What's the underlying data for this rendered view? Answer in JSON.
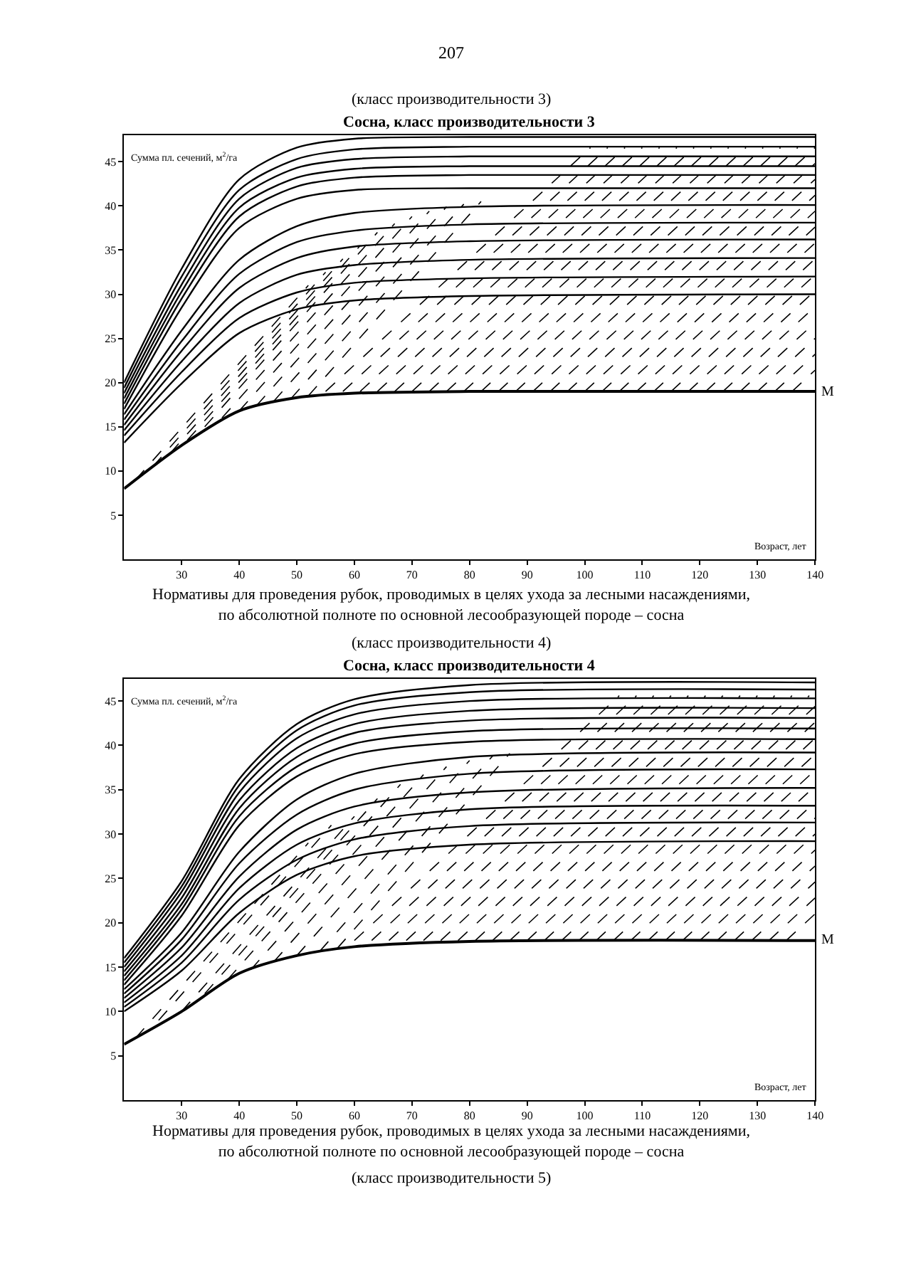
{
  "chart_data": [
    {
      "type": "line",
      "title": "Сосна, класс производительности 3",
      "xlabel": "Возраст, лет",
      "ylabel": "Сумма пл. сечений, м$^{2}$/га",
      "annotations": [
        "207",
        "(класс производительности 3)"
      ],
      "xlim": [
        20,
        140
      ],
      "xticks": [
        30,
        40,
        50,
        60,
        70,
        80,
        90,
        100,
        110,
        120,
        130,
        140
      ],
      "ylim": [
        0,
        48
      ],
      "yticks": [
        5,
        10,
        15,
        20,
        25,
        30,
        35,
        40,
        45
      ],
      "x": [
        20,
        30,
        40,
        50,
        60,
        80,
        140
      ],
      "series": [
        {
          "color": "#000000",
          "values": [
            20.0,
            32.9,
            43.0,
            46.6,
            47.6,
            47.8,
            47.8
          ]
        },
        {
          "color": "#000000",
          "values": [
            19.4,
            32.0,
            41.8,
            45.3,
            46.4,
            46.7,
            46.7
          ]
        },
        {
          "color": "#000000",
          "values": [
            18.8,
            31.1,
            40.8,
            44.3,
            45.3,
            45.6,
            45.6
          ]
        },
        {
          "color": "#000000",
          "values": [
            18.2,
            30.3,
            39.8,
            43.2,
            44.2,
            44.5,
            44.5
          ]
        },
        {
          "color": "#000000",
          "values": [
            17.6,
            29.5,
            38.8,
            42.2,
            43.2,
            43.5,
            43.5
          ]
        },
        {
          "color": "#000000",
          "values": [
            17.0,
            28.5,
            37.5,
            40.8,
            41.8,
            42.0,
            42.0
          ]
        },
        {
          "color": "#000000",
          "values": [
            16.4,
            25.9,
            33.9,
            37.7,
            39.2,
            39.9,
            40.1
          ]
        },
        {
          "color": "#000000",
          "values": [
            15.8,
            24.7,
            32.3,
            35.9,
            37.2,
            37.9,
            38.1
          ]
        },
        {
          "color": "#000000",
          "values": [
            15.2,
            23.6,
            30.7,
            34.1,
            35.4,
            36.0,
            36.2
          ]
        },
        {
          "color": "#000000",
          "values": [
            14.6,
            22.4,
            29.0,
            32.2,
            33.3,
            33.9,
            34.1
          ]
        },
        {
          "color": "#000000",
          "values": [
            14.0,
            21.2,
            27.3,
            30.2,
            31.3,
            31.8,
            32.0
          ]
        },
        {
          "color": "#000000",
          "values": [
            13.2,
            19.9,
            25.6,
            28.3,
            29.3,
            29.8,
            30.0
          ]
        },
        {
          "name": "М",
          "color": "#000000",
          "values": [
            8.0,
            12.9,
            16.8,
            18.3,
            18.8,
            19.0,
            19.0
          ]
        },
        {
          "line_style": "dashed",
          "color": "#000000",
          "x": [
            22,
            52
          ],
          "values": [
            9,
            31
          ]
        },
        {
          "line_style": "dashed",
          "color": "#000000",
          "x": [
            25,
            55
          ],
          "values": [
            10.5,
            32.5
          ]
        },
        {
          "line_style": "dashed",
          "color": "#000000",
          "x": [
            28,
            58
          ],
          "values": [
            12,
            34
          ]
        },
        {
          "line_style": "dashed",
          "color": "#000000",
          "x": [
            31,
            61
          ],
          "values": [
            13.5,
            35.5
          ]
        },
        {
          "line_style": "dashed",
          "color": "#000000",
          "x": [
            34,
            64
          ],
          "values": [
            15,
            37
          ]
        },
        {
          "line_style": "dashed",
          "color": "#000000",
          "x": [
            37,
            67
          ],
          "values": [
            16,
            38
          ]
        },
        {
          "line_style": "dashed",
          "color": "#000000",
          "x": [
            40,
            70
          ],
          "values": [
            16.8,
            38.8
          ]
        },
        {
          "line_style": "dashed",
          "color": "#000000",
          "x": [
            43,
            73
          ],
          "values": [
            17.4,
            39.4
          ]
        },
        {
          "line_style": "dashed",
          "color": "#000000",
          "x": [
            46,
            76
          ],
          "values": [
            17.9,
            39.9
          ]
        },
        {
          "line_style": "dashed",
          "color": "#000000",
          "x": [
            49,
            79
          ],
          "values": [
            18.2,
            40.2
          ]
        },
        {
          "line_style": "dashed",
          "color": "#000000",
          "x": [
            52,
            82
          ],
          "values": [
            18.5,
            40.5
          ]
        },
        {
          "line_style": "dashed",
          "color": "#000000",
          "x": [
            55,
            101
          ],
          "values": [
            19,
            46.6
          ]
        },
        {
          "line_style": "dashed",
          "color": "#000000",
          "x": [
            58,
            104
          ],
          "values": [
            19,
            46.6
          ]
        },
        {
          "line_style": "dashed",
          "color": "#000000",
          "x": [
            61,
            107
          ],
          "values": [
            19,
            46.6
          ]
        },
        {
          "line_style": "dashed",
          "color": "#000000",
          "x": [
            64,
            110
          ],
          "values": [
            19,
            46.6
          ]
        },
        {
          "line_style": "dashed",
          "color": "#000000",
          "x": [
            67,
            113
          ],
          "values": [
            19,
            46.6
          ]
        },
        {
          "line_style": "dashed",
          "color": "#000000",
          "x": [
            70,
            116
          ],
          "values": [
            19,
            46.6
          ]
        },
        {
          "line_style": "dashed",
          "color": "#000000",
          "x": [
            73,
            119
          ],
          "values": [
            19,
            46.6
          ]
        },
        {
          "line_style": "dashed",
          "color": "#000000",
          "x": [
            76,
            122
          ],
          "values": [
            19,
            46.6
          ]
        },
        {
          "line_style": "dashed",
          "color": "#000000",
          "x": [
            79,
            125
          ],
          "values": [
            19,
            46.6
          ]
        },
        {
          "line_style": "dashed",
          "color": "#000000",
          "x": [
            82,
            128
          ],
          "values": [
            19,
            46.6
          ]
        },
        {
          "line_style": "dashed",
          "color": "#000000",
          "x": [
            85,
            131
          ],
          "values": [
            19,
            46.6
          ]
        },
        {
          "line_style": "dashed",
          "color": "#000000",
          "x": [
            88,
            134
          ],
          "values": [
            19,
            46.6
          ]
        },
        {
          "line_style": "dashed",
          "color": "#000000",
          "x": [
            91,
            137
          ],
          "values": [
            19,
            46.6
          ]
        },
        {
          "line_style": "dashed",
          "color": "#000000",
          "x": [
            94,
            140
          ],
          "values": [
            19,
            46.6
          ]
        },
        {
          "line_style": "dashed",
          "color": "#000000",
          "x": [
            97,
            140
          ],
          "values": [
            19,
            44.8
          ]
        },
        {
          "line_style": "dashed",
          "color": "#000000",
          "x": [
            100,
            140
          ],
          "values": [
            19,
            43.0
          ]
        },
        {
          "line_style": "dashed",
          "color": "#000000",
          "x": [
            103,
            140
          ],
          "values": [
            19,
            41.2
          ]
        },
        {
          "line_style": "dashed",
          "color": "#000000",
          "x": [
            106,
            140
          ],
          "values": [
            19,
            39.4
          ]
        },
        {
          "line_style": "dashed",
          "color": "#000000",
          "x": [
            109,
            140
          ],
          "values": [
            19,
            37.6
          ]
        },
        {
          "line_style": "dashed",
          "color": "#000000",
          "x": [
            112,
            140
          ],
          "values": [
            19,
            35.8
          ]
        },
        {
          "line_style": "dashed",
          "color": "#000000",
          "x": [
            115,
            140
          ],
          "values": [
            19,
            34.0
          ]
        },
        {
          "line_style": "dashed",
          "color": "#000000",
          "x": [
            118,
            140
          ],
          "values": [
            19,
            32.2
          ]
        },
        {
          "line_style": "dashed",
          "color": "#000000",
          "x": [
            121,
            140
          ],
          "values": [
            19,
            30.4
          ]
        },
        {
          "line_style": "dashed",
          "color": "#000000",
          "x": [
            124,
            140
          ],
          "values": [
            19,
            28.6
          ]
        },
        {
          "line_style": "dashed",
          "color": "#000000",
          "x": [
            127,
            140
          ],
          "values": [
            19,
            26.8
          ]
        },
        {
          "line_style": "dashed",
          "color": "#000000",
          "x": [
            130,
            140
          ],
          "values": [
            19,
            25.0
          ]
        },
        {
          "line_style": "dashed",
          "color": "#000000",
          "x": [
            133,
            140
          ],
          "values": [
            19,
            23.2
          ]
        },
        {
          "line_style": "dashed",
          "color": "#000000",
          "x": [
            136,
            140
          ],
          "values": [
            19,
            21.4
          ]
        }
      ]
    },
    {
      "type": "line",
      "title": "Сосна, класс производительности 4",
      "xlabel": "Возраст, лет",
      "ylabel": "Сумма пл. сечений, м$^{2}$/га",
      "annotations": [
        "Нормативы для проведения рубок, проводимых в целях ухода за лесными насаждениями, по абсолютной полноте по основной лесообразующей породе – сосна",
        "(класс производительности 4)",
        "Нормативы для проведения рубок, проводимых в целях ухода за лесными насаждениями, по абсолютной полноте по основной лесообразующей породе – сосна",
        "(класс производительности 5)"
      ],
      "xlim": [
        20,
        140
      ],
      "xticks": [
        30,
        40,
        50,
        60,
        70,
        80,
        90,
        100,
        110,
        120,
        130,
        140
      ],
      "ylim": [
        0,
        47.5
      ],
      "yticks": [
        5,
        10,
        15,
        20,
        25,
        30,
        35,
        40,
        45
      ],
      "x": [
        20,
        30,
        40,
        50,
        60,
        80,
        140
      ],
      "series": [
        {
          "color": "#000000",
          "values": [
            16.0,
            24.7,
            36.2,
            42.4,
            45.2,
            46.8,
            47.1
          ]
        },
        {
          "color": "#000000",
          "values": [
            15.5,
            24.1,
            35.5,
            41.7,
            44.5,
            46.0,
            46.3
          ]
        },
        {
          "color": "#000000",
          "values": [
            15.0,
            23.5,
            34.7,
            40.8,
            43.5,
            45.0,
            45.3
          ]
        },
        {
          "color": "#000000",
          "values": [
            14.5,
            22.8,
            33.8,
            39.7,
            42.4,
            43.9,
            44.2
          ]
        },
        {
          "color": "#000000",
          "values": [
            14.0,
            22.1,
            32.9,
            38.7,
            41.4,
            42.8,
            43.1
          ]
        },
        {
          "color": "#000000",
          "values": [
            13.5,
            21.5,
            32.0,
            37.6,
            40.2,
            41.6,
            41.9
          ]
        },
        {
          "color": "#000000",
          "values": [
            13.0,
            20.8,
            31.0,
            36.5,
            39.0,
            40.4,
            40.7
          ]
        },
        {
          "color": "#000000",
          "values": [
            12.5,
            18.9,
            28.0,
            33.9,
            36.8,
            38.7,
            39.2
          ]
        },
        {
          "color": "#000000",
          "values": [
            12.0,
            18.1,
            26.7,
            32.2,
            35.0,
            36.8,
            37.3
          ]
        },
        {
          "color": "#000000",
          "values": [
            11.5,
            17.2,
            25.2,
            30.5,
            33.1,
            34.7,
            35.2
          ]
        },
        {
          "color": "#000000",
          "values": [
            11.0,
            16.3,
            23.9,
            28.8,
            31.2,
            32.8,
            33.2
          ]
        },
        {
          "color": "#000000",
          "values": [
            10.5,
            15.5,
            22.6,
            27.1,
            29.4,
            30.9,
            31.3
          ]
        },
        {
          "color": "#000000",
          "values": [
            10.0,
            14.6,
            21.1,
            25.4,
            27.5,
            28.8,
            29.2
          ]
        },
        {
          "name": "М",
          "color": "#000000",
          "values": [
            6.3,
            10.0,
            14.3,
            16.3,
            17.3,
            17.9,
            18.0
          ]
        },
        {
          "line_style": "dashed",
          "color": "#000000",
          "x": [
            22,
            52
          ],
          "values": [
            7,
            29
          ]
        },
        {
          "line_style": "dashed",
          "color": "#000000",
          "x": [
            26,
            56
          ],
          "values": [
            9,
            31
          ]
        },
        {
          "line_style": "dashed",
          "color": "#000000",
          "x": [
            30,
            60
          ],
          "values": [
            10,
            32
          ]
        },
        {
          "line_style": "dashed",
          "color": "#000000",
          "x": [
            34,
            64
          ],
          "values": [
            12,
            34
          ]
        },
        {
          "line_style": "dashed",
          "color": "#000000",
          "x": [
            38,
            68
          ],
          "values": [
            13.6,
            35.6
          ]
        },
        {
          "line_style": "dashed",
          "color": "#000000",
          "x": [
            42,
            72
          ],
          "values": [
            14.7,
            36.7
          ]
        },
        {
          "line_style": "dashed",
          "color": "#000000",
          "x": [
            46,
            76
          ],
          "values": [
            15.6,
            37.6
          ]
        },
        {
          "line_style": "dashed",
          "color": "#000000",
          "x": [
            50,
            80
          ],
          "values": [
            16.3,
            38.3
          ]
        },
        {
          "line_style": "dashed",
          "color": "#000000",
          "x": [
            54,
            84
          ],
          "values": [
            16.8,
            38.8
          ]
        },
        {
          "line_style": "dashed",
          "color": "#000000",
          "x": [
            57,
            87
          ],
          "values": [
            17.1,
            39.1
          ]
        },
        {
          "line_style": "dashed",
          "color": "#000000",
          "x": [
            60,
            106
          ],
          "values": [
            18,
            45.6
          ]
        },
        {
          "line_style": "dashed",
          "color": "#000000",
          "x": [
            63,
            109
          ],
          "values": [
            18,
            45.6
          ]
        },
        {
          "line_style": "dashed",
          "color": "#000000",
          "x": [
            66,
            112
          ],
          "values": [
            18,
            45.6
          ]
        },
        {
          "line_style": "dashed",
          "color": "#000000",
          "x": [
            69,
            115
          ],
          "values": [
            18,
            45.6
          ]
        },
        {
          "line_style": "dashed",
          "color": "#000000",
          "x": [
            72,
            118
          ],
          "values": [
            18,
            45.6
          ]
        },
        {
          "line_style": "dashed",
          "color": "#000000",
          "x": [
            75,
            121
          ],
          "values": [
            18,
            45.6
          ]
        },
        {
          "line_style": "dashed",
          "color": "#000000",
          "x": [
            78,
            124
          ],
          "values": [
            18,
            45.6
          ]
        },
        {
          "line_style": "dashed",
          "color": "#000000",
          "x": [
            81,
            127
          ],
          "values": [
            18,
            45.6
          ]
        },
        {
          "line_style": "dashed",
          "color": "#000000",
          "x": [
            84,
            130
          ],
          "values": [
            18,
            45.6
          ]
        },
        {
          "line_style": "dashed",
          "color": "#000000",
          "x": [
            87,
            133
          ],
          "values": [
            18,
            45.6
          ]
        },
        {
          "line_style": "dashed",
          "color": "#000000",
          "x": [
            90,
            136
          ],
          "values": [
            18,
            45.6
          ]
        },
        {
          "line_style": "dashed",
          "color": "#000000",
          "x": [
            93,
            139
          ],
          "values": [
            18,
            45.6
          ]
        },
        {
          "line_style": "dashed",
          "color": "#000000",
          "x": [
            96,
            140
          ],
          "values": [
            18,
            44.4
          ]
        },
        {
          "line_style": "dashed",
          "color": "#000000",
          "x": [
            99,
            140
          ],
          "values": [
            18,
            42.6
          ]
        },
        {
          "line_style": "dashed",
          "color": "#000000",
          "x": [
            102,
            140
          ],
          "values": [
            18,
            40.8
          ]
        },
        {
          "line_style": "dashed",
          "color": "#000000",
          "x": [
            105,
            140
          ],
          "values": [
            18,
            39.0
          ]
        },
        {
          "line_style": "dashed",
          "color": "#000000",
          "x": [
            108,
            140
          ],
          "values": [
            18,
            37.2
          ]
        },
        {
          "line_style": "dashed",
          "color": "#000000",
          "x": [
            111,
            140
          ],
          "values": [
            18,
            35.4
          ]
        },
        {
          "line_style": "dashed",
          "color": "#000000",
          "x": [
            114,
            140
          ],
          "values": [
            18,
            33.6
          ]
        },
        {
          "line_style": "dashed",
          "color": "#000000",
          "x": [
            117,
            140
          ],
          "values": [
            18,
            31.8
          ]
        },
        {
          "line_style": "dashed",
          "color": "#000000",
          "x": [
            120,
            140
          ],
          "values": [
            18,
            30.0
          ]
        },
        {
          "line_style": "dashed",
          "color": "#000000",
          "x": [
            123,
            140
          ],
          "values": [
            18,
            28.2
          ]
        },
        {
          "line_style": "dashed",
          "color": "#000000",
          "x": [
            126,
            140
          ],
          "values": [
            18,
            26.4
          ]
        },
        {
          "line_style": "dashed",
          "color": "#000000",
          "x": [
            129,
            140
          ],
          "values": [
            18,
            24.6
          ]
        },
        {
          "line_style": "dashed",
          "color": "#000000",
          "x": [
            132,
            140
          ],
          "values": [
            18,
            22.8
          ]
        },
        {
          "line_style": "dashed",
          "color": "#000000",
          "x": [
            135,
            140
          ],
          "values": [
            18,
            21.0
          ]
        }
      ]
    }
  ]
}
